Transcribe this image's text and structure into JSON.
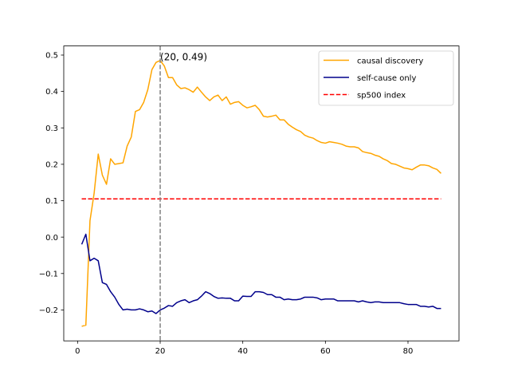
{
  "chart_data": {
    "type": "line",
    "title": "",
    "xlabel": "",
    "ylabel": "",
    "xlim": [
      -3.35,
      92.35
    ],
    "ylim": [
      -0.285,
      0.525
    ],
    "x_ticks": [
      0,
      20,
      40,
      60,
      80
    ],
    "x_tick_labels": [
      "0",
      "20",
      "40",
      "60",
      "80"
    ],
    "y_ticks": [
      -0.2,
      -0.1,
      0.0,
      0.1,
      0.2,
      0.3,
      0.4,
      0.5
    ],
    "y_tick_labels": [
      "−0.2",
      "−0.1",
      "0.0",
      "0.1",
      "0.2",
      "0.3",
      "0.4",
      "0.5"
    ],
    "grid": false,
    "legend_position": "top-right",
    "series": [
      {
        "name": "causal discovery",
        "color": "#ffa500",
        "line_style": "solid",
        "x": [
          1,
          2,
          3,
          4,
          5,
          6,
          7,
          8,
          9,
          10,
          11,
          12,
          13,
          14,
          15,
          16,
          17,
          18,
          19,
          20,
          21,
          22,
          23,
          24,
          25,
          26,
          27,
          28,
          29,
          30,
          31,
          32,
          33,
          34,
          35,
          36,
          37,
          38,
          39,
          40,
          41,
          42,
          43,
          44,
          45,
          46,
          47,
          48,
          49,
          50,
          51,
          52,
          53,
          54,
          55,
          56,
          57,
          58,
          59,
          60,
          61,
          62,
          63,
          64,
          65,
          66,
          67,
          68,
          69,
          70,
          71,
          72,
          73,
          74,
          75,
          76,
          77,
          78,
          79,
          80,
          81,
          82,
          83,
          84,
          85,
          86,
          87,
          88
        ],
        "y": [
          -0.245,
          -0.242,
          0.045,
          0.12,
          0.228,
          0.17,
          0.145,
          0.215,
          0.2,
          0.202,
          0.204,
          0.25,
          0.275,
          0.345,
          0.35,
          0.37,
          0.405,
          0.46,
          0.48,
          0.485,
          0.47,
          0.438,
          0.438,
          0.418,
          0.408,
          0.41,
          0.405,
          0.398,
          0.412,
          0.398,
          0.385,
          0.375,
          0.385,
          0.39,
          0.375,
          0.385,
          0.365,
          0.37,
          0.372,
          0.362,
          0.355,
          0.358,
          0.362,
          0.35,
          0.332,
          0.33,
          0.332,
          0.335,
          0.322,
          0.322,
          0.31,
          0.302,
          0.295,
          0.29,
          0.28,
          0.275,
          0.272,
          0.265,
          0.26,
          0.258,
          0.262,
          0.26,
          0.258,
          0.255,
          0.25,
          0.248,
          0.248,
          0.245,
          0.235,
          0.232,
          0.23,
          0.225,
          0.222,
          0.215,
          0.21,
          0.202,
          0.2,
          0.195,
          0.19,
          0.188,
          0.185,
          0.192,
          0.198,
          0.198,
          0.196,
          0.19,
          0.186,
          0.175
        ]
      },
      {
        "name": "self-cause only",
        "color": "#00008b",
        "line_style": "solid",
        "x": [
          1,
          2,
          3,
          4,
          5,
          6,
          7,
          8,
          9,
          10,
          11,
          12,
          13,
          14,
          15,
          16,
          17,
          18,
          19,
          20,
          21,
          22,
          23,
          24,
          25,
          26,
          27,
          28,
          29,
          30,
          31,
          32,
          33,
          34,
          35,
          36,
          37,
          38,
          39,
          40,
          41,
          42,
          43,
          44,
          45,
          46,
          47,
          48,
          49,
          50,
          51,
          52,
          53,
          54,
          55,
          56,
          57,
          58,
          59,
          60,
          61,
          62,
          63,
          64,
          65,
          66,
          67,
          68,
          69,
          70,
          71,
          72,
          73,
          74,
          75,
          76,
          77,
          78,
          79,
          80,
          81,
          82,
          83,
          84,
          85,
          86,
          87,
          88
        ],
        "y": [
          -0.02,
          0.008,
          -0.065,
          -0.058,
          -0.065,
          -0.125,
          -0.13,
          -0.15,
          -0.165,
          -0.185,
          -0.2,
          -0.198,
          -0.2,
          -0.2,
          -0.197,
          -0.2,
          -0.205,
          -0.203,
          -0.21,
          -0.2,
          -0.195,
          -0.188,
          -0.19,
          -0.18,
          -0.175,
          -0.172,
          -0.18,
          -0.175,
          -0.172,
          -0.162,
          -0.15,
          -0.155,
          -0.163,
          -0.168,
          -0.167,
          -0.168,
          -0.168,
          -0.175,
          -0.175,
          -0.162,
          -0.163,
          -0.163,
          -0.15,
          -0.15,
          -0.152,
          -0.158,
          -0.158,
          -0.165,
          -0.165,
          -0.172,
          -0.17,
          -0.172,
          -0.172,
          -0.17,
          -0.165,
          -0.165,
          -0.165,
          -0.167,
          -0.172,
          -0.17,
          -0.17,
          -0.17,
          -0.175,
          -0.175,
          -0.175,
          -0.175,
          -0.175,
          -0.178,
          -0.175,
          -0.178,
          -0.18,
          -0.178,
          -0.178,
          -0.18,
          -0.18,
          -0.18,
          -0.18,
          -0.18,
          -0.183,
          -0.185,
          -0.185,
          -0.185,
          -0.19,
          -0.19,
          -0.192,
          -0.19,
          -0.196,
          -0.196
        ]
      },
      {
        "name": "sp500 index",
        "color": "#ff0000",
        "line_style": "dashed",
        "x": [
          1,
          88
        ],
        "y": [
          0.105,
          0.105
        ]
      }
    ],
    "vline": {
      "x": 20,
      "color": "#808080",
      "line_style": "dashed"
    },
    "annotation": {
      "text": "(20, 0.49)",
      "x": 20,
      "y": 0.49
    }
  }
}
